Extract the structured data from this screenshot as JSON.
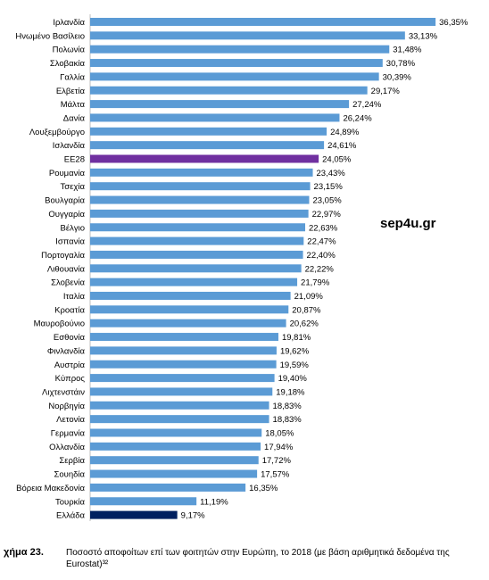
{
  "chart_data": {
    "type": "bar",
    "orientation": "horizontal",
    "categories": [
      "Ιρλανδία",
      "Ηνωμένο Βασίλειο",
      "Πολωνία",
      "Σλοβακία",
      "Γαλλία",
      "Ελβετία",
      "Μάλτα",
      "Δανία",
      "Λουξεμβούργο",
      "Ισλανδία",
      "ΕΕ28",
      "Ρουμανία",
      "Τσεχία",
      "Βουλγαρία",
      "Ουγγαρία",
      "Βέλγιο",
      "Ισπανία",
      "Πορτογαλία",
      "Λιθουανία",
      "Σλοβενία",
      "Ιταλία",
      "Κροατία",
      "Μαυροβούνιο",
      "Εσθονία",
      "Φινλανδία",
      "Αυστρία",
      "Κύπρος",
      "Λιχτενστάιν",
      "Νορβηγία",
      "Λετονία",
      "Γερμανία",
      "Ολλανδία",
      "Σερβία",
      "Σουηδία",
      "Βόρεια Μακεδονία",
      "Τουρκία",
      "Ελλάδα"
    ],
    "values": [
      36.35,
      33.13,
      31.48,
      30.78,
      30.39,
      29.17,
      27.24,
      26.24,
      24.89,
      24.61,
      24.05,
      23.43,
      23.15,
      23.05,
      22.97,
      22.63,
      22.47,
      22.4,
      22.22,
      21.79,
      21.09,
      20.87,
      20.62,
      19.81,
      19.62,
      19.59,
      19.4,
      19.18,
      18.83,
      18.83,
      18.05,
      17.94,
      17.72,
      17.57,
      16.35,
      11.19,
      9.17
    ],
    "value_labels": [
      "36,35%",
      "33,13%",
      "31,48%",
      "30,78%",
      "30,39%",
      "29,17%",
      "27,24%",
      "26,24%",
      "24,89%",
      "24,61%",
      "24,05%",
      "23,43%",
      "23,15%",
      "23,05%",
      "22,97%",
      "22,63%",
      "22,47%",
      "22,40%",
      "22,22%",
      "21,79%",
      "21,09%",
      "20,87%",
      "20,62%",
      "19,81%",
      "19,62%",
      "19,59%",
      "19,40%",
      "19,18%",
      "18,83%",
      "18,83%",
      "18,05%",
      "17,94%",
      "17,72%",
      "17,57%",
      "16,35%",
      "11,19%",
      "9,17%"
    ],
    "title": "",
    "xlabel": "",
    "ylabel": "",
    "xlim": [
      0,
      40
    ],
    "grid": false,
    "colors": {
      "default": "#5B9BD5",
      "highlight_eu": "#7030A0",
      "highlight_greece": "#002060"
    },
    "highlight": {
      "ΕΕ28": "highlight_eu",
      "Ελλάδα": "highlight_greece"
    }
  },
  "watermark": "sep4u.gr",
  "caption": {
    "number": "χήμα 23.",
    "text": "Ποσοστό αποφοίτων επί των φοιτητών στην Ευρώπη, το 2018 (με βάση αριθμητικά δεδομένα της Eurostat)³²"
  }
}
